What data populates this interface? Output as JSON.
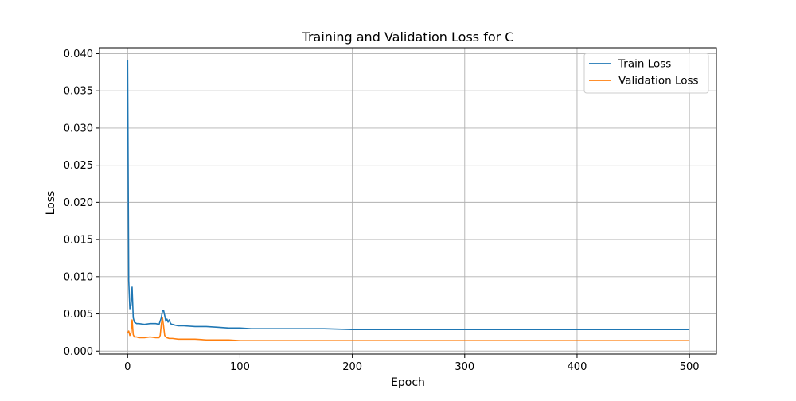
{
  "chart_data": {
    "type": "line",
    "title": "Training and Validation Loss for C",
    "xlabel": "Epoch",
    "ylabel": "Loss",
    "xlim": [
      -25,
      524
    ],
    "ylim": [
      -0.0004,
      0.0408
    ],
    "xticks": [
      0,
      100,
      200,
      300,
      400,
      500
    ],
    "yticks": [
      0.0,
      0.005,
      0.01,
      0.015,
      0.02,
      0.025,
      0.03,
      0.035,
      0.04
    ],
    "ytick_labels": [
      "0.000",
      "0.005",
      "0.010",
      "0.015",
      "0.020",
      "0.025",
      "0.030",
      "0.035",
      "0.040"
    ],
    "grid": true,
    "legend_position": "top-right",
    "series": [
      {
        "name": "Train Loss",
        "color": "#1f77b4",
        "x": [
          0,
          1,
          2,
          3,
          4,
          5,
          6,
          8,
          10,
          15,
          20,
          25,
          28,
          30,
          31,
          32,
          33,
          34,
          35,
          36,
          37,
          38,
          39,
          40,
          42,
          45,
          50,
          60,
          70,
          80,
          90,
          100,
          110,
          120,
          130,
          140,
          150,
          175,
          200,
          225,
          250,
          275,
          300,
          325,
          350,
          375,
          400,
          425,
          450,
          475,
          500
        ],
        "y": [
          0.0392,
          0.0095,
          0.0057,
          0.0062,
          0.0086,
          0.0045,
          0.0039,
          0.0037,
          0.0037,
          0.0036,
          0.0037,
          0.0037,
          0.0036,
          0.0045,
          0.0054,
          0.0055,
          0.0048,
          0.004,
          0.0043,
          0.0039,
          0.0042,
          0.0038,
          0.0036,
          0.0036,
          0.0035,
          0.0034,
          0.0034,
          0.0033,
          0.0033,
          0.0032,
          0.0031,
          0.0031,
          0.003,
          0.003,
          0.003,
          0.003,
          0.003,
          0.003,
          0.0029,
          0.0029,
          0.0029,
          0.0029,
          0.0029,
          0.0029,
          0.0029,
          0.0029,
          0.0029,
          0.0029,
          0.0029,
          0.0029,
          0.0029
        ]
      },
      {
        "name": "Validation Loss",
        "color": "#ff7f0e",
        "x": [
          0,
          1,
          2,
          3,
          4,
          5,
          6,
          8,
          10,
          15,
          20,
          25,
          28,
          29,
          30,
          31,
          32,
          33,
          34,
          35,
          37,
          40,
          45,
          50,
          60,
          70,
          80,
          90,
          100,
          120,
          150,
          200,
          250,
          300,
          350,
          400,
          450,
          500
        ],
        "y": [
          0.0024,
          0.0027,
          0.0021,
          0.0024,
          0.0042,
          0.0022,
          0.0019,
          0.0019,
          0.0018,
          0.0018,
          0.0019,
          0.0018,
          0.0018,
          0.0021,
          0.0036,
          0.0045,
          0.0034,
          0.0021,
          0.0019,
          0.0018,
          0.0017,
          0.0017,
          0.0016,
          0.0016,
          0.0016,
          0.0015,
          0.0015,
          0.0015,
          0.0014,
          0.0014,
          0.0014,
          0.0014,
          0.0014,
          0.0014,
          0.0014,
          0.0014,
          0.0014,
          0.0014
        ]
      }
    ]
  }
}
